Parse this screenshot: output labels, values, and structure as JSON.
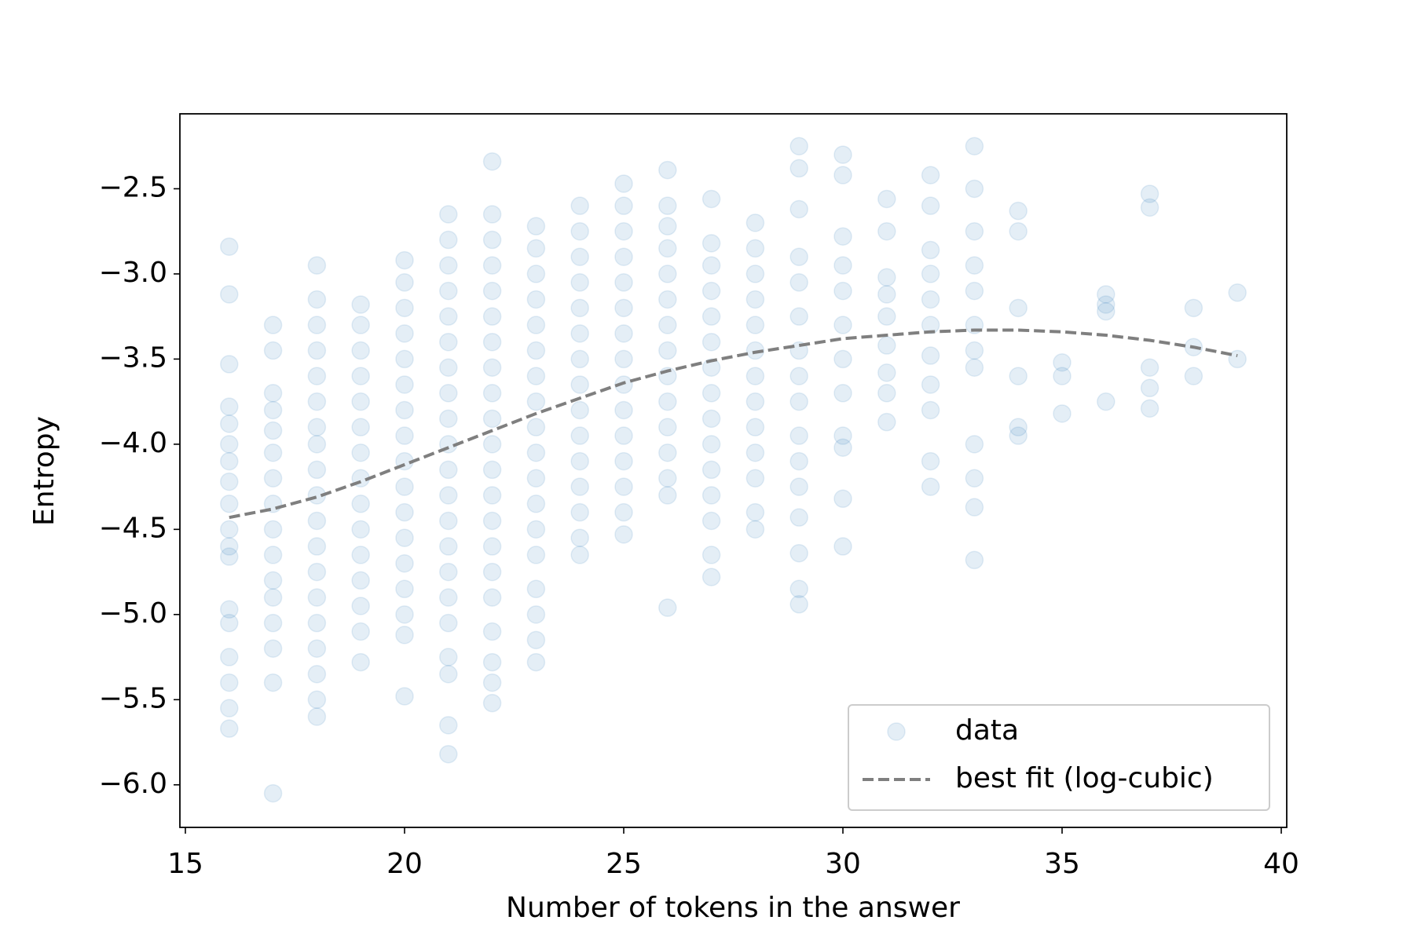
{
  "chart_data": {
    "type": "scatter",
    "xlabel": "Number of tokens in the answer",
    "ylabel": "Entropy",
    "xlim": [
      14.875,
      40.125
    ],
    "ylim": [
      -6.25,
      -2.06
    ],
    "xticks": [
      15,
      20,
      25,
      30,
      35,
      40
    ],
    "yticks": [
      {
        "value": -6.0,
        "label": "−6.0"
      },
      {
        "value": -5.5,
        "label": "−5.5"
      },
      {
        "value": -5.0,
        "label": "−5.0"
      },
      {
        "value": -4.5,
        "label": "−4.5"
      },
      {
        "value": -4.0,
        "label": "−4.0"
      },
      {
        "value": -3.5,
        "label": "−3.5"
      },
      {
        "value": -3.0,
        "label": "−3.0"
      },
      {
        "value": -2.5,
        "label": "−2.5"
      }
    ],
    "legend": "lower right",
    "series": [
      {
        "name": "data",
        "type": "scatter",
        "color": "#1f77b4",
        "opacity": 0.12,
        "x": [
          16,
          16,
          16,
          16,
          16,
          16,
          16,
          16,
          16,
          16,
          16,
          16,
          16,
          16,
          16,
          16,
          16,
          16,
          17,
          17,
          17,
          17,
          17,
          17,
          17,
          17,
          17,
          17,
          17,
          17,
          17,
          17,
          17,
          17,
          18,
          18,
          18,
          18,
          18,
          18,
          18,
          18,
          18,
          18,
          18,
          18,
          18,
          18,
          18,
          18,
          18,
          18,
          18,
          19,
          19,
          19,
          19,
          19,
          19,
          19,
          19,
          19,
          19,
          19,
          19,
          19,
          19,
          19,
          20,
          20,
          20,
          20,
          20,
          20,
          20,
          20,
          20,
          20,
          20,
          20,
          20,
          20,
          20,
          20,
          20,
          21,
          21,
          21,
          21,
          21,
          21,
          21,
          21,
          21,
          21,
          21,
          21,
          21,
          21,
          21,
          21,
          21,
          21,
          21,
          21,
          21,
          22,
          22,
          22,
          22,
          22,
          22,
          22,
          22,
          22,
          22,
          22,
          22,
          22,
          22,
          22,
          22,
          22,
          22,
          22,
          22,
          22,
          23,
          23,
          23,
          23,
          23,
          23,
          23,
          23,
          23,
          23,
          23,
          23,
          23,
          23,
          23,
          23,
          23,
          23,
          24,
          24,
          24,
          24,
          24,
          24,
          24,
          24,
          24,
          24,
          24,
          24,
          24,
          24,
          24,
          25,
          25,
          25,
          25,
          25,
          25,
          25,
          25,
          25,
          25,
          25,
          25,
          25,
          25,
          25,
          26,
          26,
          26,
          26,
          26,
          26,
          26,
          26,
          26,
          26,
          26,
          26,
          26,
          26,
          26,
          27,
          27,
          27,
          27,
          27,
          27,
          27,
          27,
          27,
          27,
          27,
          27,
          27,
          27,
          27,
          28,
          28,
          28,
          28,
          28,
          28,
          28,
          28,
          28,
          28,
          28,
          28,
          28,
          29,
          29,
          29,
          29,
          29,
          29,
          29,
          29,
          29,
          29,
          29,
          29,
          29,
          29,
          29,
          29,
          30,
          30,
          30,
          30,
          30,
          30,
          30,
          30,
          30,
          30,
          30,
          30,
          31,
          31,
          31,
          31,
          31,
          31,
          31,
          31,
          31,
          32,
          32,
          32,
          32,
          32,
          32,
          32,
          32,
          32,
          32,
          32,
          33,
          33,
          33,
          33,
          33,
          33,
          33,
          33,
          33,
          33,
          33,
          33,
          34,
          34,
          34,
          34,
          34,
          34,
          35,
          35,
          35,
          36,
          36,
          36,
          36,
          37,
          37,
          37,
          37,
          37,
          38,
          38,
          38,
          39,
          39
        ],
        "values": [
          -2.84,
          -3.12,
          -3.53,
          -3.78,
          -3.88,
          -4.0,
          -4.1,
          -4.22,
          -4.35,
          -4.5,
          -4.6,
          -4.66,
          -4.97,
          -5.05,
          -5.25,
          -5.4,
          -5.55,
          -5.67,
          -3.3,
          -3.45,
          -3.7,
          -3.8,
          -3.92,
          -4.05,
          -4.2,
          -4.35,
          -4.5,
          -4.65,
          -4.8,
          -4.9,
          -5.05,
          -5.2,
          -5.4,
          -6.05,
          -2.95,
          -3.15,
          -3.3,
          -3.45,
          -3.6,
          -3.75,
          -3.9,
          -4.0,
          -4.15,
          -4.3,
          -4.45,
          -4.6,
          -4.75,
          -4.9,
          -5.05,
          -5.2,
          -5.35,
          -5.5,
          -5.6,
          -3.18,
          -3.3,
          -3.45,
          -3.6,
          -3.75,
          -3.9,
          -4.05,
          -4.2,
          -4.35,
          -4.5,
          -4.65,
          -4.8,
          -4.95,
          -5.1,
          -5.28,
          -2.92,
          -3.05,
          -3.2,
          -3.35,
          -3.5,
          -3.65,
          -3.8,
          -3.95,
          -4.1,
          -4.25,
          -4.4,
          -4.55,
          -4.7,
          -4.85,
          -5.0,
          -5.12,
          -5.48,
          -2.65,
          -2.8,
          -2.95,
          -3.1,
          -3.25,
          -3.4,
          -3.55,
          -3.7,
          -3.85,
          -4.0,
          -4.15,
          -4.3,
          -4.45,
          -4.6,
          -4.75,
          -4.9,
          -5.05,
          -5.25,
          -5.35,
          -5.65,
          -5.82,
          -2.34,
          -2.65,
          -2.8,
          -2.95,
          -3.1,
          -3.25,
          -3.4,
          -3.55,
          -3.7,
          -3.85,
          -4.0,
          -4.15,
          -4.3,
          -4.45,
          -4.6,
          -4.75,
          -4.9,
          -5.1,
          -5.28,
          -5.4,
          -5.52,
          -2.72,
          -2.85,
          -3.0,
          -3.15,
          -3.3,
          -3.45,
          -3.6,
          -3.75,
          -3.9,
          -4.05,
          -4.2,
          -4.35,
          -4.5,
          -4.65,
          -4.85,
          -5.0,
          -5.15,
          -5.28,
          -2.6,
          -2.75,
          -2.9,
          -3.05,
          -3.2,
          -3.35,
          -3.5,
          -3.65,
          -3.8,
          -3.95,
          -4.1,
          -4.25,
          -4.4,
          -4.55,
          -4.65,
          -2.47,
          -2.6,
          -2.75,
          -2.9,
          -3.05,
          -3.2,
          -3.35,
          -3.5,
          -3.65,
          -3.8,
          -3.95,
          -4.1,
          -4.25,
          -4.4,
          -4.53,
          -2.39,
          -2.6,
          -2.72,
          -2.85,
          -3.0,
          -3.15,
          -3.3,
          -3.45,
          -3.6,
          -3.75,
          -3.9,
          -4.05,
          -4.2,
          -4.3,
          -4.96,
          -2.56,
          -2.82,
          -2.95,
          -3.1,
          -3.25,
          -3.4,
          -3.55,
          -3.7,
          -3.85,
          -4.0,
          -4.15,
          -4.3,
          -4.45,
          -4.65,
          -4.78,
          -2.7,
          -2.85,
          -3.0,
          -3.15,
          -3.3,
          -3.45,
          -3.6,
          -3.75,
          -3.9,
          -4.05,
          -4.2,
          -4.4,
          -4.5,
          -2.25,
          -2.38,
          -2.62,
          -2.9,
          -3.05,
          -3.25,
          -3.45,
          -3.6,
          -3.75,
          -3.95,
          -4.1,
          -4.25,
          -4.43,
          -4.64,
          -4.85,
          -4.94,
          -2.3,
          -2.42,
          -2.78,
          -2.95,
          -3.1,
          -3.3,
          -3.5,
          -3.7,
          -3.95,
          -4.02,
          -4.32,
          -4.6,
          -2.56,
          -2.75,
          -3.02,
          -3.12,
          -3.25,
          -3.42,
          -3.58,
          -3.7,
          -3.87,
          -2.42,
          -2.6,
          -2.86,
          -3.0,
          -3.15,
          -3.3,
          -3.48,
          -3.65,
          -3.8,
          -4.1,
          -4.25,
          -2.25,
          -2.5,
          -2.75,
          -2.95,
          -3.1,
          -3.3,
          -3.45,
          -3.55,
          -4.0,
          -4.2,
          -4.37,
          -4.68,
          -2.63,
          -2.75,
          -3.2,
          -3.6,
          -3.9,
          -3.95,
          -3.52,
          -3.6,
          -3.82,
          -3.12,
          -3.18,
          -3.22,
          -3.75,
          -2.53,
          -2.61,
          -3.55,
          -3.67,
          -3.79,
          -3.2,
          -3.43,
          -3.6,
          -3.11,
          -3.5
        ]
      },
      {
        "name": "best fit (log-cubic)",
        "type": "line",
        "color": "#7f7f7f",
        "dashed": true,
        "x": [
          16,
          17,
          18,
          19,
          20,
          21,
          22,
          23,
          24,
          25,
          26,
          27,
          28,
          29,
          30,
          31,
          32,
          33,
          34,
          35,
          36,
          37,
          38,
          39
        ],
        "values": [
          -4.43,
          -4.38,
          -4.31,
          -4.22,
          -4.12,
          -4.02,
          -3.92,
          -3.82,
          -3.73,
          -3.64,
          -3.57,
          -3.51,
          -3.46,
          -3.42,
          -3.38,
          -3.36,
          -3.34,
          -3.33,
          -3.33,
          -3.34,
          -3.36,
          -3.39,
          -3.43,
          -3.48
        ]
      }
    ]
  }
}
